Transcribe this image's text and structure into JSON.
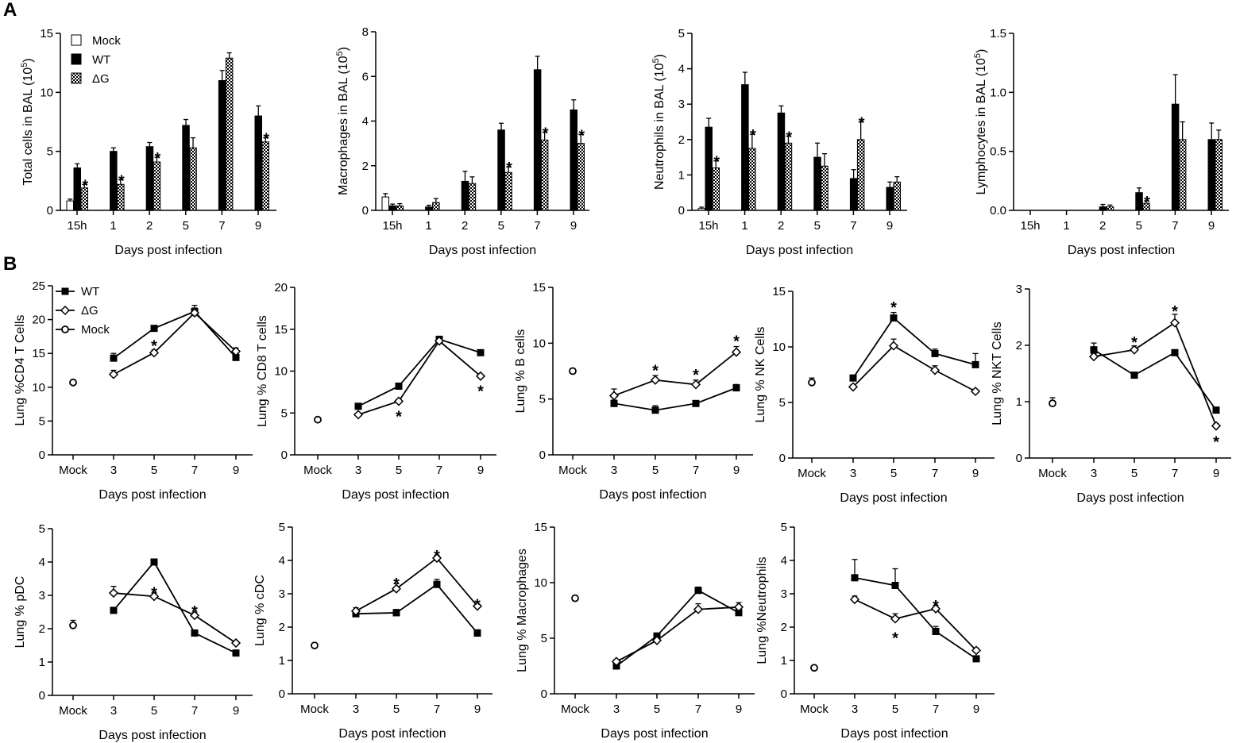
{
  "figure": {
    "panel_a_label": "A",
    "panel_b_label": "B"
  },
  "chart_data": [
    {
      "id": "a1",
      "type": "bar",
      "title": "",
      "ylabel": "Total cells in BAL (10^5)",
      "xlabel": "Days post infection",
      "categories": [
        "15h",
        "1",
        "2",
        "5",
        "7",
        "9"
      ],
      "ylim": [
        0,
        15
      ],
      "yticks": [
        0,
        5,
        10,
        15
      ],
      "ytick_labels": [
        "0",
        "5",
        "10",
        "15"
      ],
      "legend": [
        "Mock",
        "WT",
        "ΔG"
      ],
      "series": [
        {
          "name": "Mock",
          "values": [
            0.8,
            null,
            null,
            null,
            null,
            null
          ],
          "errors": [
            0.15,
            null,
            null,
            null,
            null,
            null
          ]
        },
        {
          "name": "WT",
          "values": [
            3.6,
            5.0,
            5.4,
            7.2,
            11.0,
            8.0
          ],
          "errors": [
            0.35,
            0.3,
            0.35,
            0.5,
            0.85,
            0.85
          ]
        },
        {
          "name": "ΔG",
          "values": [
            1.9,
            2.2,
            4.1,
            5.3,
            12.9,
            5.8
          ],
          "errors": [
            0.3,
            0.4,
            0.4,
            0.85,
            0.45,
            0.35
          ]
        }
      ],
      "stars": [
        [
          0,
          "ΔG"
        ],
        [
          1,
          "ΔG"
        ],
        [
          2,
          "ΔG"
        ],
        [
          5,
          "ΔG"
        ]
      ],
      "star_label": "*"
    },
    {
      "id": "a2",
      "type": "bar",
      "title": "",
      "ylabel": "Macrophages in BAL (10^5)",
      "xlabel": "Days post infection",
      "categories": [
        "15h",
        "1",
        "2",
        "5",
        "7",
        "9"
      ],
      "ylim": [
        0,
        8
      ],
      "yticks": [
        0,
        2,
        4,
        6,
        8
      ],
      "ytick_labels": [
        "0",
        "2",
        "4",
        "6",
        "8"
      ],
      "series": [
        {
          "name": "Mock",
          "values": [
            0.6,
            null,
            null,
            null,
            null,
            null
          ],
          "errors": [
            0.15,
            null,
            null,
            null,
            null,
            null
          ]
        },
        {
          "name": "WT",
          "values": [
            0.2,
            0.15,
            1.3,
            3.6,
            6.3,
            4.5
          ],
          "errors": [
            0.08,
            0.08,
            0.45,
            0.3,
            0.6,
            0.45
          ]
        },
        {
          "name": "ΔG",
          "values": [
            0.2,
            0.35,
            1.2,
            1.7,
            3.15,
            3.0
          ],
          "errors": [
            0.1,
            0.18,
            0.3,
            0.25,
            0.35,
            0.4
          ]
        }
      ],
      "stars": [
        [
          3,
          "ΔG"
        ],
        [
          4,
          "ΔG"
        ],
        [
          5,
          "ΔG"
        ]
      ],
      "star_label": "*"
    },
    {
      "id": "a3",
      "type": "bar",
      "title": "",
      "ylabel": "Neutrophils in BAL (10^5)",
      "xlabel": "Days post infection",
      "categories": [
        "15h",
        "1",
        "2",
        "5",
        "7",
        "9"
      ],
      "ylim": [
        0,
        5
      ],
      "yticks": [
        0,
        1,
        2,
        3,
        4,
        5
      ],
      "ytick_labels": [
        "0",
        "1",
        "2",
        "3",
        "4",
        "5"
      ],
      "series": [
        {
          "name": "Mock",
          "values": [
            0.05,
            null,
            null,
            null,
            null,
            null
          ],
          "errors": [
            0.04,
            null,
            null,
            null,
            null,
            null
          ]
        },
        {
          "name": "WT",
          "values": [
            2.35,
            3.55,
            2.75,
            1.5,
            0.9,
            0.65
          ],
          "errors": [
            0.25,
            0.35,
            0.2,
            0.4,
            0.25,
            0.15
          ]
        },
        {
          "name": "ΔG",
          "values": [
            1.2,
            1.75,
            1.9,
            1.25,
            2.0,
            0.8
          ],
          "errors": [
            0.2,
            0.4,
            0.2,
            0.35,
            0.5,
            0.15
          ]
        }
      ],
      "stars": [
        [
          0,
          "ΔG"
        ],
        [
          1,
          "ΔG"
        ],
        [
          2,
          "ΔG"
        ],
        [
          4,
          "ΔG"
        ]
      ],
      "star_label": "*"
    },
    {
      "id": "a4",
      "type": "bar",
      "title": "",
      "ylabel": "Lymphocytes in BAL (10^5)",
      "xlabel": "Days post infection",
      "categories": [
        "15h",
        "1",
        "2",
        "5",
        "7",
        "9"
      ],
      "ylim": [
        0,
        1.5
      ],
      "yticks": [
        0,
        0.5,
        1.0,
        1.5
      ],
      "ytick_labels": [
        "0.0",
        "0.5",
        "1.0",
        "1.5"
      ],
      "series": [
        {
          "name": "Mock",
          "values": [
            null,
            null,
            null,
            null,
            null,
            null
          ],
          "errors": [
            null,
            null,
            null,
            null,
            null,
            null
          ]
        },
        {
          "name": "WT",
          "values": [
            0,
            0,
            0.03,
            0.15,
            0.9,
            0.6
          ],
          "errors": [
            0,
            0,
            0.02,
            0.04,
            0.25,
            0.14
          ]
        },
        {
          "name": "ΔG",
          "values": [
            0,
            0,
            0.03,
            0.06,
            0.6,
            0.6
          ],
          "errors": [
            0,
            0,
            0.015,
            0.02,
            0.15,
            0.08
          ]
        }
      ],
      "stars": [
        [
          3,
          "ΔG"
        ]
      ],
      "star_label": "*"
    },
    {
      "id": "b1",
      "type": "line",
      "ylabel": "Lung %CD4 T Cells",
      "xlabel": "Days post infection",
      "x_labels": [
        "Mock",
        "3",
        "5",
        "7",
        "9"
      ],
      "ylim": [
        0,
        25
      ],
      "yticks": [
        0,
        5,
        10,
        15,
        20,
        25
      ],
      "ytick_labels": [
        "0",
        "5",
        "10",
        "15",
        "20",
        "25"
      ],
      "legend": [
        "WT",
        "ΔG",
        "Mock"
      ],
      "mock": {
        "value": 10.7,
        "error": 0.3
      },
      "series": [
        {
          "name": "WT",
          "values": [
            14.3,
            18.7,
            21.2,
            14.4
          ],
          "errors": [
            0.7,
            0.3,
            0.9,
            0.5
          ]
        },
        {
          "name": "ΔG",
          "values": [
            11.9,
            15.1,
            21.0,
            15.3
          ],
          "errors": [
            0.6,
            0.4,
            0.7,
            0.5
          ]
        }
      ],
      "stars": [
        {
          "i": 1,
          "pos": "above",
          "value": 16.5
        }
      ],
      "star_label": "*"
    },
    {
      "id": "b2",
      "type": "line",
      "ylabel": "Lung % CD8 T cells",
      "xlabel": "Days post infection",
      "x_labels": [
        "Mock",
        "3",
        "5",
        "7",
        "9"
      ],
      "ylim": [
        0,
        20
      ],
      "yticks": [
        0,
        5,
        10,
        15,
        20
      ],
      "ytick_labels": [
        "0",
        "5",
        "10",
        "15",
        "20"
      ],
      "mock": {
        "value": 4.2,
        "error": 0.2
      },
      "series": [
        {
          "name": "WT",
          "values": [
            5.8,
            8.2,
            13.8,
            12.2
          ],
          "errors": [
            0.2,
            0.2,
            0.3,
            0.2
          ]
        },
        {
          "name": "ΔG",
          "values": [
            4.8,
            6.4,
            13.6,
            9.4
          ],
          "errors": [
            0.2,
            0.2,
            0.4,
            0.2
          ]
        }
      ],
      "stars": [
        {
          "i": 1,
          "pos": "below",
          "value": 4.9
        },
        {
          "i": 3,
          "pos": "below",
          "value": 7.9
        }
      ],
      "star_label": "*"
    },
    {
      "id": "b3",
      "type": "line",
      "ylabel": "Lung % B cells",
      "xlabel": "Days post infection",
      "x_labels": [
        "Mock",
        "3",
        "5",
        "7",
        "9"
      ],
      "ylim": [
        0,
        15
      ],
      "yticks": [
        0,
        5,
        10,
        15
      ],
      "ytick_labels": [
        "0",
        "5",
        "10",
        "15"
      ],
      "mock": {
        "value": 7.5,
        "error": 0.2
      },
      "series": [
        {
          "name": "WT",
          "values": [
            4.6,
            4.0,
            4.6,
            6.0
          ],
          "errors": [
            0.3,
            0.4,
            0.2,
            0.3
          ]
        },
        {
          "name": "ΔG",
          "values": [
            5.3,
            6.7,
            6.3,
            9.2
          ],
          "errors": [
            0.6,
            0.4,
            0.4,
            0.5
          ]
        }
      ],
      "stars": [
        {
          "i": 1,
          "pos": "above",
          "value": 7.8
        },
        {
          "i": 2,
          "pos": "above",
          "value": 7.4
        },
        {
          "i": 3,
          "pos": "above",
          "value": 10.4
        }
      ],
      "star_label": "*"
    },
    {
      "id": "b4",
      "type": "line",
      "ylabel": "Lung % NK Cells",
      "xlabel": "Days post infection",
      "x_labels": [
        "Mock",
        "3",
        "5",
        "7",
        "9"
      ],
      "ylim": [
        0,
        15
      ],
      "yticks": [
        0,
        5,
        10,
        15
      ],
      "ytick_labels": [
        "0",
        "5",
        "10",
        "15"
      ],
      "mock": {
        "value": 6.8,
        "error": 0.4
      },
      "series": [
        {
          "name": "WT",
          "values": [
            7.2,
            12.6,
            9.4,
            8.4
          ],
          "errors": [
            0.2,
            0.5,
            0.4,
            1.0
          ]
        },
        {
          "name": "ΔG",
          "values": [
            6.4,
            10.1,
            7.9,
            6.0
          ],
          "errors": [
            0.2,
            0.6,
            0.4,
            0.2
          ]
        }
      ],
      "stars": [
        {
          "i": 1,
          "pos": "above",
          "value": 13.8
        }
      ],
      "star_label": "*"
    },
    {
      "id": "b5",
      "type": "line",
      "ylabel": "Lung % NKT Cells",
      "xlabel": "Days post infection",
      "x_labels": [
        "Mock",
        "3",
        "5",
        "7",
        "9"
      ],
      "ylim": [
        0,
        3
      ],
      "yticks": [
        0,
        1,
        2,
        3
      ],
      "ytick_labels": [
        "0",
        "1",
        "2",
        "3"
      ],
      "mock": {
        "value": 0.97,
        "error": 0.1
      },
      "series": [
        {
          "name": "WT",
          "values": [
            1.92,
            1.47,
            1.87,
            0.85
          ],
          "errors": [
            0.12,
            0.05,
            0.04,
            0.03
          ]
        },
        {
          "name": "ΔG",
          "values": [
            1.8,
            1.92,
            2.4,
            0.57
          ],
          "errors": [
            0.05,
            0.07,
            0.15,
            0.04
          ]
        }
      ],
      "stars": [
        {
          "i": 1,
          "pos": "above",
          "value": 2.1
        },
        {
          "i": 2,
          "pos": "above",
          "value": 2.65
        },
        {
          "i": 3,
          "pos": "below",
          "value": 0.33
        }
      ],
      "star_label": "*"
    },
    {
      "id": "b6",
      "type": "line",
      "ylabel": "Lung % pDC",
      "xlabel": "Days post infection",
      "x_labels": [
        "Mock",
        "3",
        "5",
        "7",
        "9"
      ],
      "ylim": [
        0,
        5
      ],
      "yticks": [
        0,
        1,
        2,
        3,
        4,
        5
      ],
      "ytick_labels": [
        "0",
        "1",
        "2",
        "3",
        "4",
        "5"
      ],
      "mock": {
        "value": 2.1,
        "error": 0.15
      },
      "series": [
        {
          "name": "WT",
          "values": [
            2.55,
            4.0,
            1.87,
            1.27
          ],
          "errors": [
            0.05,
            0.05,
            0.05,
            0.05
          ]
        },
        {
          "name": "ΔG",
          "values": [
            3.07,
            2.97,
            2.4,
            1.57
          ],
          "errors": [
            0.2,
            0.1,
            0.1,
            0.05
          ]
        }
      ],
      "stars": [
        {
          "i": 1,
          "pos": "above",
          "value": 3.15
        },
        {
          "i": 2,
          "pos": "above",
          "value": 2.6
        }
      ],
      "star_label": "*"
    },
    {
      "id": "b7",
      "type": "line",
      "ylabel": "Lung % cDC",
      "xlabel": "Days post infection",
      "x_labels": [
        "Mock",
        "3",
        "5",
        "7",
        "9"
      ],
      "ylim": [
        0,
        5
      ],
      "yticks": [
        0,
        1,
        2,
        3,
        4,
        5
      ],
      "ytick_labels": [
        "0",
        "1",
        "2",
        "3",
        "4",
        "5"
      ],
      "mock": {
        "value": 1.45,
        "error": 0.05
      },
      "series": [
        {
          "name": "WT",
          "values": [
            2.4,
            2.43,
            3.28,
            1.82
          ],
          "errors": [
            0.1,
            0.1,
            0.15,
            0.1
          ]
        },
        {
          "name": "ΔG",
          "values": [
            2.48,
            3.15,
            4.07,
            2.63
          ],
          "errors": [
            0.1,
            0.15,
            0.07,
            0.05
          ]
        }
      ],
      "stars": [
        {
          "i": 1,
          "pos": "above",
          "value": 3.38
        },
        {
          "i": 2,
          "pos": "above",
          "value": 4.22
        },
        {
          "i": 3,
          "pos": "above",
          "value": 2.75
        }
      ],
      "star_label": "*"
    },
    {
      "id": "b8",
      "type": "line",
      "ylabel": "Lung % Macrophages",
      "xlabel": "Days post infection",
      "x_labels": [
        "Mock",
        "3",
        "5",
        "7",
        "9"
      ],
      "ylim": [
        0,
        15
      ],
      "yticks": [
        0,
        5,
        10,
        15
      ],
      "ytick_labels": [
        "0",
        "5",
        "10",
        "15"
      ],
      "mock": {
        "value": 8.6,
        "error": 0.2
      },
      "series": [
        {
          "name": "WT",
          "values": [
            2.5,
            5.2,
            9.3,
            7.3
          ],
          "errors": [
            0.2,
            0.2,
            0.3,
            0.4
          ]
        },
        {
          "name": "ΔG",
          "values": [
            2.9,
            4.8,
            7.6,
            7.8
          ],
          "errors": [
            0.2,
            0.2,
            0.5,
            0.4
          ]
        }
      ],
      "stars": [],
      "star_label": "*"
    },
    {
      "id": "b9",
      "type": "line",
      "ylabel": "Lung %Neutrophils",
      "xlabel": "Days post infection",
      "x_labels": [
        "Mock",
        "3",
        "5",
        "7",
        "9"
      ],
      "ylim": [
        0,
        5
      ],
      "yticks": [
        0,
        1,
        2,
        3,
        4,
        5
      ],
      "ytick_labels": [
        "0",
        "1",
        "2",
        "3",
        "4",
        "5"
      ],
      "mock": {
        "value": 0.78,
        "error": 0.05
      },
      "series": [
        {
          "name": "WT",
          "values": [
            3.48,
            3.25,
            1.87,
            1.05
          ],
          "errors": [
            0.55,
            0.5,
            0.15,
            0.05
          ]
        },
        {
          "name": "ΔG",
          "values": [
            2.83,
            2.25,
            2.55,
            1.3
          ],
          "errors": [
            0.1,
            0.15,
            0.1,
            0.07
          ]
        }
      ],
      "stars": [
        {
          "i": 1,
          "pos": "below",
          "value": 1.75
        },
        {
          "i": 2,
          "pos": "above",
          "value": 2.72
        }
      ],
      "star_label": "*"
    }
  ]
}
